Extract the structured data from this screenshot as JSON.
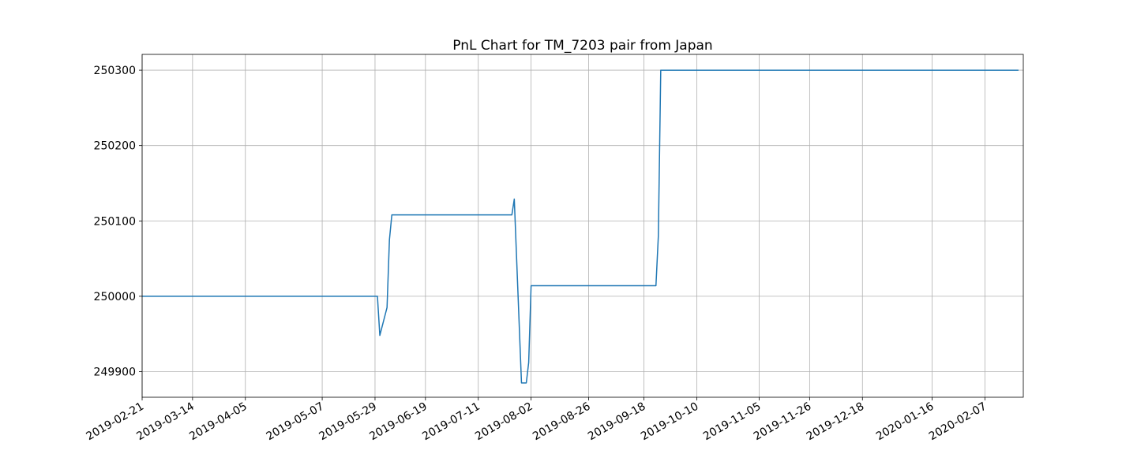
{
  "chart_data": {
    "type": "line",
    "title": "PnL Chart for TM_7203 pair from Japan",
    "xlabel": "",
    "ylabel": "",
    "x_type": "date",
    "xlim": [
      "2019-02-21",
      "2020-02-23"
    ],
    "ylim": [
      249866,
      250321
    ],
    "x_ticks": [
      "2019-02-21",
      "2019-03-14",
      "2019-04-05",
      "2019-05-07",
      "2019-05-29",
      "2019-06-19",
      "2019-07-11",
      "2019-08-02",
      "2019-08-26",
      "2019-09-18",
      "2019-10-10",
      "2019-11-05",
      "2019-11-26",
      "2019-12-18",
      "2020-01-16",
      "2020-02-07"
    ],
    "y_ticks": [
      249900,
      250000,
      250100,
      250200,
      250300
    ],
    "grid": true,
    "line_color": "#1f77b4",
    "series": [
      {
        "x": [
          "2019-02-21",
          "2019-05-30",
          "2019-05-31",
          "2019-06-03",
          "2019-06-04",
          "2019-06-05",
          "2019-07-25",
          "2019-07-26",
          "2019-07-29",
          "2019-07-31",
          "2019-08-01",
          "2019-08-02",
          "2019-08-05",
          "2019-09-23",
          "2019-09-24",
          "2019-09-25",
          "2020-02-21"
        ],
        "y": [
          250000,
          250000,
          249948,
          249985,
          250075,
          250108,
          250108,
          250129,
          249885,
          249885,
          249912,
          250014,
          250014,
          250014,
          250080,
          250300,
          250300
        ]
      }
    ]
  }
}
